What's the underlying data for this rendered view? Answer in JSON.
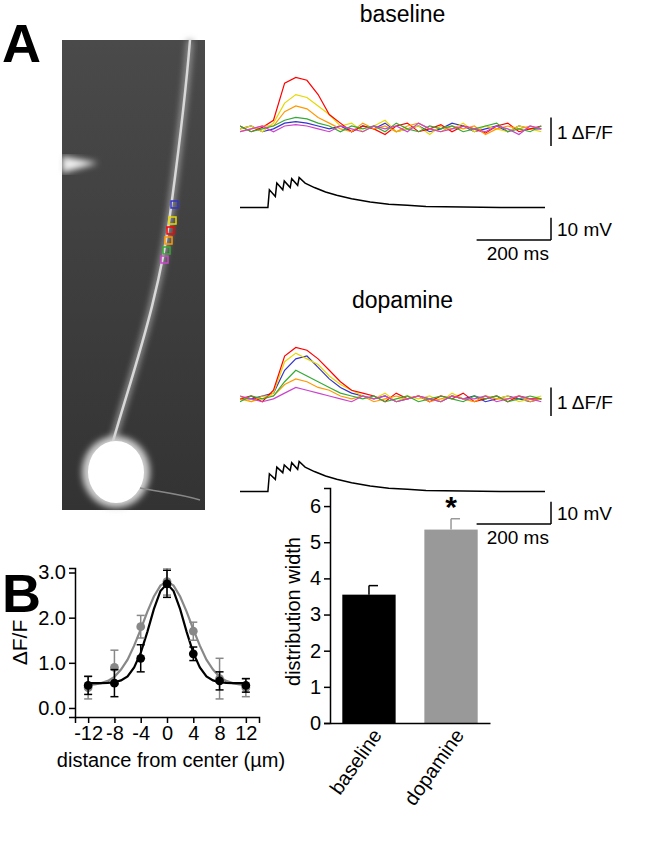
{
  "panel_labels": [
    "A",
    "B"
  ],
  "chart_data": [
    {
      "type": "line",
      "title": "baseline",
      "tick_labels": false,
      "xlim": [
        0,
        820
      ],
      "ylim": [
        -0.6,
        2.2
      ],
      "x": [
        0,
        30,
        60,
        90,
        120,
        150,
        180,
        210,
        240,
        270,
        300,
        330,
        360,
        390,
        420,
        450,
        480,
        510,
        540,
        570,
        600,
        630,
        660,
        690,
        720,
        750,
        780,
        810
      ],
      "scale_bars": {
        "y": {
          "value": 1,
          "label": "1 ΔF/F"
        }
      },
      "series": [
        {
          "color": "#3333cc",
          "values": [
            0.0,
            0.1,
            -0.1,
            0.0,
            0.2,
            0.25,
            0.2,
            0.1,
            0.0,
            0.1,
            -0.1,
            0.1,
            0.0,
            0.2,
            -0.1,
            0.0,
            0.1,
            -0.1,
            0.0,
            0.2,
            0.1,
            -0.1,
            0.0,
            0.1,
            -0.1,
            0.1,
            0.0,
            0.0
          ]
        },
        {
          "color": "#e6d800",
          "values": [
            0.0,
            0.1,
            -0.1,
            0.2,
            0.9,
            1.2,
            1.1,
            0.8,
            0.5,
            0.1,
            0.2,
            -0.1,
            0.1,
            0.3,
            -0.1,
            0.0,
            0.1,
            -0.2,
            0.1,
            0.0,
            0.2,
            -0.1,
            0.1,
            0.0,
            -0.1,
            0.1,
            0.0,
            -0.1
          ]
        },
        {
          "color": "#ff0000",
          "values": [
            0.1,
            -0.1,
            0.05,
            0.3,
            1.6,
            1.8,
            1.7,
            1.2,
            0.5,
            0.2,
            -0.1,
            0.1,
            0.0,
            -0.2,
            0.1,
            0.2,
            -0.1,
            0.0,
            0.15,
            -0.1,
            0.1,
            0.0,
            -0.15,
            0.1,
            0.2,
            -0.1,
            0.0,
            0.1
          ]
        },
        {
          "color": "#ff9900",
          "values": [
            -0.1,
            0.0,
            0.1,
            0.1,
            0.6,
            0.8,
            0.7,
            0.4,
            0.2,
            0.0,
            -0.1,
            0.2,
            0.0,
            0.1,
            -0.1,
            0.1,
            0.2,
            0.0,
            -0.1,
            0.1,
            0.0,
            0.1,
            -0.2,
            0.0,
            0.1,
            0.0,
            0.1,
            0.0
          ]
        },
        {
          "color": "#33aa33",
          "values": [
            0.1,
            -0.1,
            0.0,
            0.1,
            0.3,
            0.4,
            0.35,
            0.2,
            0.1,
            -0.1,
            0.1,
            0.0,
            0.1,
            -0.1,
            0.2,
            0.0,
            -0.1,
            0.1,
            0.0,
            0.1,
            -0.1,
            0.0,
            0.1,
            0.2,
            -0.1,
            0.0,
            -0.1,
            0.1
          ]
        },
        {
          "color": "#cc44cc",
          "values": [
            -0.1,
            0.0,
            0.1,
            -0.1,
            0.1,
            0.15,
            0.1,
            0.0,
            -0.1,
            0.1,
            0.0,
            -0.1,
            0.1,
            0.0,
            0.1,
            -0.1,
            0.2,
            0.0,
            -0.1,
            0.0,
            0.1,
            0.0,
            -0.1,
            0.1,
            0.0,
            -0.2,
            0.1,
            0.0
          ]
        }
      ]
    },
    {
      "type": "line",
      "tick_labels": false,
      "xlim": [
        0,
        820
      ],
      "ylim": [
        -2,
        16
      ],
      "x": [
        0,
        75,
        79,
        95,
        99,
        115,
        119,
        135,
        139,
        155,
        159,
        175,
        200,
        230,
        260,
        300,
        350,
        400,
        450,
        500,
        600,
        700,
        820
      ],
      "scale_bars": {
        "y": {
          "value": 10,
          "label": "10 mV"
        },
        "x": {
          "value": 200,
          "label": "200 ms"
        }
      },
      "series": [
        {
          "color": "#000000",
          "values": [
            0,
            0,
            8,
            5,
            11,
            8,
            12,
            9,
            13,
            10,
            13.5,
            11,
            9,
            7,
            5.5,
            4,
            2.5,
            1.5,
            1,
            0.5,
            0.2,
            0,
            0
          ]
        }
      ]
    },
    {
      "type": "line",
      "title": "dopamine",
      "tick_labels": false,
      "xlim": [
        0,
        820
      ],
      "ylim": [
        -0.6,
        2.2
      ],
      "x": [
        0,
        30,
        60,
        90,
        120,
        150,
        180,
        210,
        240,
        270,
        300,
        330,
        360,
        390,
        420,
        450,
        480,
        510,
        540,
        570,
        600,
        630,
        660,
        690,
        720,
        750,
        780,
        810
      ],
      "scale_bars": {
        "y": {
          "value": 1,
          "label": "1 ΔF/F"
        }
      },
      "series": [
        {
          "color": "#3333cc",
          "values": [
            0.0,
            0.0,
            0.1,
            0.2,
            1.0,
            1.4,
            1.5,
            1.1,
            0.7,
            0.4,
            0.2,
            0.1,
            0.0,
            0.1,
            -0.1,
            0.0,
            0.1,
            0.0,
            -0.1,
            0.1,
            0.0,
            0.1,
            -0.1,
            0.0,
            0.1,
            0.0,
            -0.1,
            0.0
          ]
        },
        {
          "color": "#e6d800",
          "values": [
            0.1,
            -0.1,
            0.0,
            0.2,
            1.3,
            1.6,
            1.4,
            1.2,
            0.8,
            0.5,
            0.3,
            0.1,
            0.0,
            0.2,
            -0.1,
            0.1,
            0.0,
            0.1,
            -0.1,
            0.2,
            0.0,
            -0.1,
            0.1,
            0.0,
            0.1,
            -0.1,
            0.0,
            0.1
          ]
        },
        {
          "color": "#ff0000",
          "values": [
            0.0,
            0.1,
            -0.1,
            0.3,
            1.5,
            1.8,
            1.7,
            1.4,
            1.0,
            0.6,
            0.3,
            0.2,
            0.1,
            -0.1,
            0.2,
            0.0,
            0.1,
            -0.1,
            0.1,
            0.0,
            0.2,
            -0.1,
            0.0,
            0.1,
            -0.1,
            0.1,
            0.0,
            0.0
          ]
        },
        {
          "color": "#ff9900",
          "values": [
            0.0,
            -0.1,
            0.1,
            0.1,
            0.5,
            0.7,
            0.6,
            0.4,
            0.3,
            0.1,
            0.0,
            0.1,
            -0.1,
            0.0,
            0.1,
            0.0,
            0.1,
            -0.1,
            0.0,
            0.1,
            0.0,
            -0.1,
            0.1,
            0.0,
            0.0,
            0.1,
            -0.1,
            0.0
          ]
        },
        {
          "color": "#33aa33",
          "values": [
            -0.1,
            0.1,
            0.0,
            0.1,
            0.6,
            1.0,
            0.8,
            0.6,
            0.4,
            0.2,
            0.1,
            0.0,
            0.1,
            -0.1,
            0.0,
            0.1,
            -0.1,
            0.0,
            0.1,
            0.0,
            -0.1,
            0.1,
            0.0,
            0.1,
            -0.1,
            0.0,
            0.1,
            0.0
          ]
        },
        {
          "color": "#cc44cc",
          "values": [
            0.1,
            0.0,
            -0.1,
            0.0,
            0.2,
            0.4,
            0.3,
            0.2,
            0.1,
            0.0,
            -0.1,
            0.1,
            0.0,
            0.1,
            -0.1,
            0.0,
            0.1,
            0.0,
            -0.1,
            0.1,
            0.0,
            0.0,
            0.1,
            -0.1,
            0.0,
            0.1,
            0.0,
            -0.1
          ]
        }
      ]
    },
    {
      "type": "line",
      "tick_labels": false,
      "xlim": [
        0,
        820
      ],
      "ylim": [
        -2,
        16
      ],
      "x": [
        0,
        75,
        79,
        95,
        99,
        115,
        119,
        135,
        139,
        155,
        159,
        175,
        200,
        230,
        260,
        300,
        350,
        400,
        450,
        500,
        600,
        700,
        820
      ],
      "scale_bars": {
        "y": {
          "value": 10,
          "label": "10 mV"
        },
        "x": {
          "value": 200,
          "label": "200 ms"
        }
      },
      "series": [
        {
          "color": "#000000",
          "values": [
            0,
            0,
            8,
            5.5,
            11,
            8.5,
            12,
            9.5,
            13,
            10,
            13.5,
            11,
            9,
            7,
            5.5,
            4,
            2.5,
            1.5,
            1,
            0.5,
            0.2,
            0,
            0
          ]
        }
      ]
    },
    {
      "type": "scatter",
      "xlabel": "distance from center (µm)",
      "ylabel": "ΔF/F",
      "xlim": [
        -14,
        14
      ],
      "ylim": [
        -0.2,
        3.1
      ],
      "xticks": [
        -12,
        -8,
        -4,
        0,
        4,
        8,
        12
      ],
      "yticks": [
        {
          "value": 0,
          "label": "0.0"
        },
        {
          "value": 1,
          "label": "1.0"
        },
        {
          "value": 2,
          "label": "2.0"
        },
        {
          "value": 3,
          "label": "3.0"
        }
      ],
      "series": [
        {
          "type": "line",
          "color": "#888888",
          "x": [
            -12,
            -11,
            -10,
            -9,
            -8,
            -7,
            -6,
            -5,
            -4,
            -3,
            -2,
            -1,
            0,
            1,
            2,
            3,
            4,
            5,
            6,
            7,
            8,
            9,
            10,
            11,
            12
          ],
          "values": [
            0.51,
            0.52,
            0.55,
            0.6,
            0.69,
            0.85,
            1.07,
            1.38,
            1.74,
            2.13,
            2.47,
            2.71,
            2.8,
            2.71,
            2.47,
            2.13,
            1.74,
            1.38,
            1.07,
            0.85,
            0.69,
            0.6,
            0.55,
            0.52,
            0.51
          ]
        },
        {
          "type": "line",
          "color": "#000000",
          "x": [
            -12,
            -11,
            -10,
            -9,
            -8,
            -7,
            -6,
            -5,
            -4,
            -3,
            -2,
            -1,
            0,
            1,
            2,
            3,
            4,
            5,
            6,
            7,
            8,
            9,
            10,
            11,
            12
          ],
          "values": [
            0.55,
            0.55,
            0.55,
            0.555,
            0.57,
            0.61,
            0.7,
            0.9,
            1.22,
            1.68,
            2.19,
            2.59,
            2.75,
            2.59,
            2.19,
            1.68,
            1.22,
            0.9,
            0.7,
            0.61,
            0.57,
            0.555,
            0.55,
            0.55,
            0.55
          ]
        },
        {
          "type": "scatter",
          "color": "#888888",
          "marker": "circle",
          "x": [
            -12,
            -8,
            -4,
            0,
            4,
            8,
            12
          ],
          "values": [
            0.45,
            0.9,
            1.8,
            2.8,
            1.7,
            0.65,
            0.45
          ],
          "errors": [
            0.25,
            0.38,
            0.25,
            0.3,
            0.2,
            0.45,
            0.2
          ]
        },
        {
          "type": "scatter",
          "color": "#000000",
          "marker": "circle",
          "x": [
            -12,
            -8,
            -4,
            0,
            4,
            8,
            12
          ],
          "values": [
            0.5,
            0.55,
            1.1,
            2.75,
            1.2,
            0.6,
            0.5
          ],
          "errors": [
            0.2,
            0.3,
            0.3,
            0.3,
            0.15,
            0.2,
            0.15
          ]
        }
      ]
    },
    {
      "type": "bar",
      "ylabel": "distribution width",
      "categories": [
        "baseline",
        "dopamine"
      ],
      "values": [
        3.55,
        5.35
      ],
      "errors": [
        0.25,
        0.3
      ],
      "colors": [
        "#000000",
        "#999999"
      ],
      "ylim": [
        0,
        6.5
      ],
      "yticks": [
        0,
        1,
        2,
        3,
        4,
        5,
        6
      ],
      "annotations": [
        {
          "text": "*",
          "category": "dopamine"
        }
      ]
    }
  ]
}
